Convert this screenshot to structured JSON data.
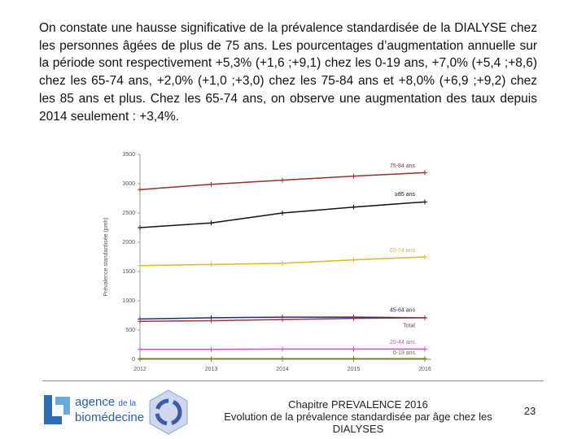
{
  "text": {
    "paragraph": "On constate une hausse significative de la prévalence standardisée de la DIALYSE chez les personnes âgées de plus de 75 ans. Les pourcentages d’augmentation annuelle sur la période sont respectivement +5,3% (+1,6 ;+9,1) chez les 0-19 ans,  +7,0% (+5,4 ;+8,6) chez les 65-74 ans, +2,0% (+1,0 ;+3,0) chez les 75-84 ans et +8,0% (+6,9 ;+9,2) chez les 85 ans et plus. Chez les 65-74 ans, on observe une augmentation des taux depuis 2014 seulement : +3,4%."
  },
  "chart_data": {
    "type": "line",
    "y_label": "Prévalence standardisée (pmh)",
    "categories": [
      "2012",
      "2013",
      "2014",
      "2015",
      "2016"
    ],
    "ylim": [
      0,
      3500
    ],
    "yticks": [
      0,
      500,
      1000,
      1500,
      2000,
      2500,
      3000,
      3500
    ],
    "series": [
      {
        "name": "75-84 ans",
        "color": "#9b2d2d",
        "values": [
          2900,
          2990,
          3060,
          3130,
          3190
        ]
      },
      {
        "name": "≥85 ans",
        "color": "#111111",
        "values": [
          2250,
          2330,
          2500,
          2600,
          2690
        ]
      },
      {
        "name": "65-74 ans",
        "color": "#e2b52c",
        "values": [
          1600,
          1620,
          1640,
          1700,
          1750
        ]
      },
      {
        "name": "45-64 ans",
        "color": "#1f2a7a",
        "values": [
          690,
          710,
          720,
          720,
          710
        ]
      },
      {
        "name": "Total",
        "color": "#a0303a",
        "values": [
          650,
          660,
          680,
          700,
          710
        ]
      },
      {
        "name": "20-44 ans",
        "color": "#d946c8",
        "values": [
          170,
          170,
          175,
          175,
          175
        ]
      },
      {
        "name": "0-19 ans",
        "color": "#6b7a1f",
        "values": [
          10,
          10,
          10,
          10,
          10
        ]
      }
    ]
  },
  "footer": {
    "logo_agence": "agence",
    "logo_de_la": "de la",
    "logo_biomedecine": "biomédecine",
    "chapter": "Chapitre PREVALENCE 2016",
    "subtitle": "Evolution de la prévalence standardisée par âge chez les DIALYSES",
    "page": "23"
  }
}
